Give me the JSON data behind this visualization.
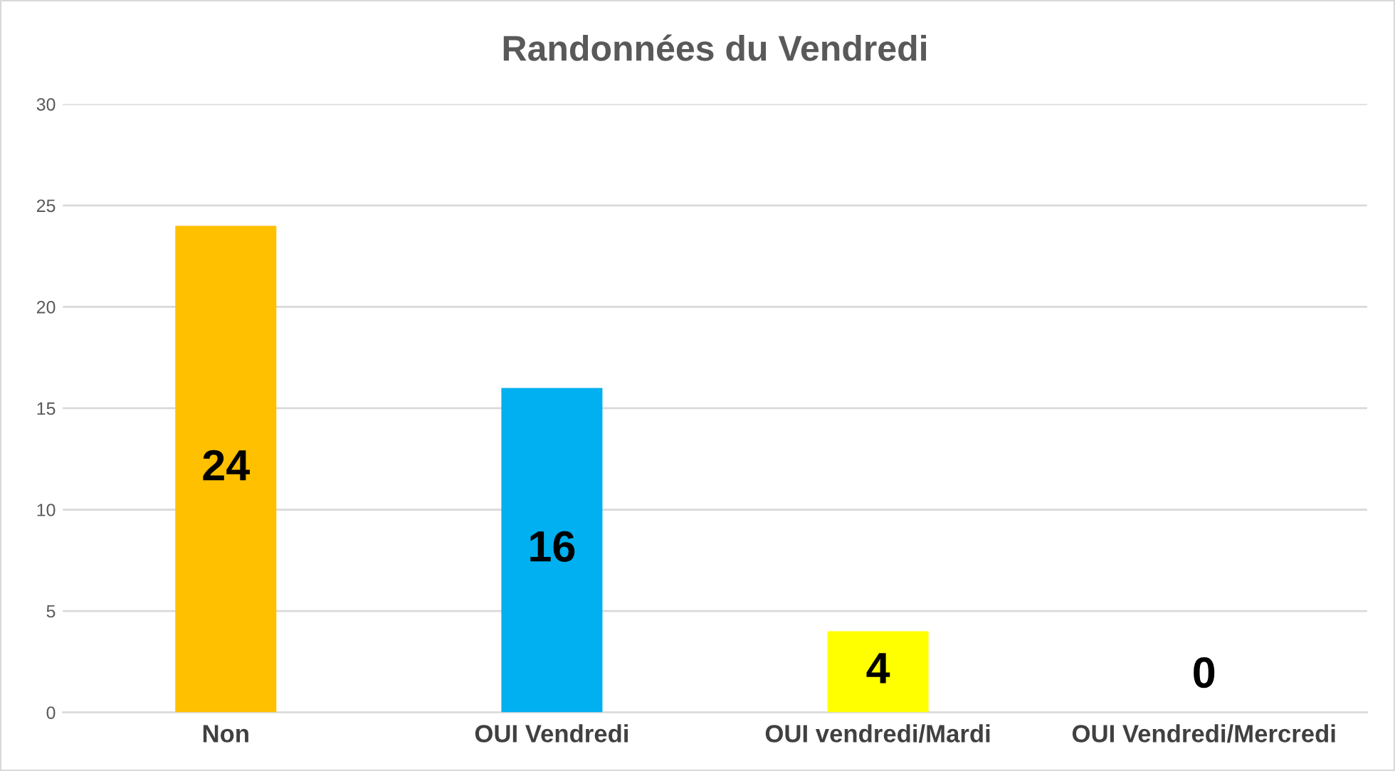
{
  "chart_data": {
    "type": "bar",
    "title": "Randonnées du Vendredi",
    "categories": [
      "Non",
      "OUI Vendredi",
      "OUI vendredi/Mardi",
      "OUI Vendredi/Mercredi"
    ],
    "values": [
      24,
      16,
      4,
      0
    ],
    "colors": [
      "#ffc000",
      "#00b0f0",
      "#ffff00",
      "#92d050"
    ],
    "ylim": [
      0,
      30
    ],
    "yticks": [
      0,
      5,
      10,
      15,
      20,
      25,
      30
    ],
    "grid": "y",
    "data_labels": true,
    "legend": false
  }
}
